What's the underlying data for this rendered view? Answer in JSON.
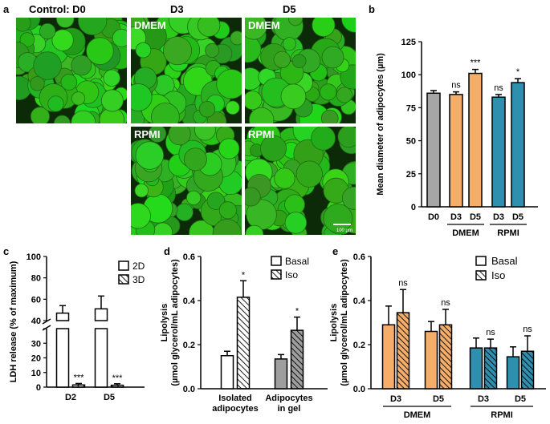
{
  "panel_a": {
    "label": "a",
    "titles": {
      "d0": "Control: D0",
      "d3": "D3",
      "d5": "D5"
    },
    "image_labels": {
      "d3_dmem": "DMEM",
      "d5_dmem": "DMEM",
      "d3_rpmi": "RPMI",
      "d5_rpmi": "RPMI"
    },
    "scale_bar": "100 µm"
  },
  "chart_data": [
    {
      "panel": "b",
      "type": "bar",
      "ylabel": "Mean diameter of adipocytes (µm)",
      "ylim": [
        0,
        125
      ],
      "yticks": [
        0,
        25,
        50,
        75,
        100,
        125
      ],
      "categories": [
        "D0",
        "D3",
        "D5",
        "D3",
        "D5"
      ],
      "groups": [
        {
          "name": "DMEM",
          "members": [
            1,
            2
          ]
        },
        {
          "name": "RPMI",
          "members": [
            3,
            4
          ]
        }
      ],
      "values": [
        86,
        85,
        101,
        83,
        94
      ],
      "errors": [
        2,
        2,
        3,
        2,
        3
      ],
      "colors": [
        "#a6a6a6",
        "#f4ae6a",
        "#f4ae6a",
        "#2e8fae",
        "#2e8fae"
      ],
      "annotations": [
        "",
        "ns",
        "***",
        "ns",
        "*"
      ]
    },
    {
      "panel": "c",
      "type": "bar",
      "ylabel": "LDH release (% of maximum)",
      "yticks_lower": [
        0,
        10,
        20,
        30,
        40
      ],
      "yticks_upper": [
        40,
        60,
        80,
        100
      ],
      "categories": [
        "D2",
        "D5"
      ],
      "series": [
        {
          "name": "2D",
          "values": [
            47,
            51
          ],
          "errors": [
            7,
            12
          ]
        },
        {
          "name": "3D",
          "values": [
            1.5,
            1.3
          ],
          "errors": [
            1,
            1
          ]
        }
      ],
      "annotations": [
        "***",
        "***"
      ],
      "legend": "top-right"
    },
    {
      "panel": "d",
      "type": "bar",
      "ylabel": "Lipolysis",
      "ylabel_sub": "(µmol glycerol/mL adipocytes)",
      "ylim": [
        0,
        0.6
      ],
      "yticks": [
        0.0,
        0.2,
        0.4,
        0.6
      ],
      "categories": [
        [
          "Isolated",
          "adipocytes"
        ],
        [
          "Adipocytes",
          "in gel"
        ]
      ],
      "series": [
        {
          "name": "Basal",
          "values": [
            0.15,
            0.135
          ],
          "errors": [
            0.02,
            0.02
          ]
        },
        {
          "name": "Iso",
          "values": [
            0.415,
            0.265
          ],
          "errors": [
            0.075,
            0.06
          ]
        }
      ],
      "annotations": [
        "*",
        "*"
      ],
      "fills": [
        "#ffffff",
        "#9e9e9e"
      ],
      "legend": "top-right"
    },
    {
      "panel": "e",
      "type": "bar",
      "ylabel": "Lipolysis",
      "ylabel_sub": "(µmol glycerol/mL adipocytes)",
      "ylim": [
        0,
        0.6
      ],
      "yticks": [
        0.0,
        0.2,
        0.4,
        0.6
      ],
      "categories": [
        "D3",
        "D5",
        "D3",
        "D5"
      ],
      "groups": [
        {
          "name": "DMEM",
          "members": [
            0,
            1
          ]
        },
        {
          "name": "RPMI",
          "members": [
            2,
            3
          ]
        }
      ],
      "colors": [
        "#f4ae6a",
        "#f4ae6a",
        "#2e8fae",
        "#2e8fae"
      ],
      "series": [
        {
          "name": "Basal",
          "values": [
            0.29,
            0.26,
            0.185,
            0.145
          ],
          "errors": [
            0.085,
            0.045,
            0.045,
            0.045
          ]
        },
        {
          "name": "Iso",
          "values": [
            0.345,
            0.29,
            0.185,
            0.17
          ],
          "errors": [
            0.105,
            0.07,
            0.04,
            0.07
          ]
        }
      ],
      "annotations": [
        "ns",
        "ns",
        "ns",
        "ns"
      ],
      "legend": "top-right"
    }
  ]
}
